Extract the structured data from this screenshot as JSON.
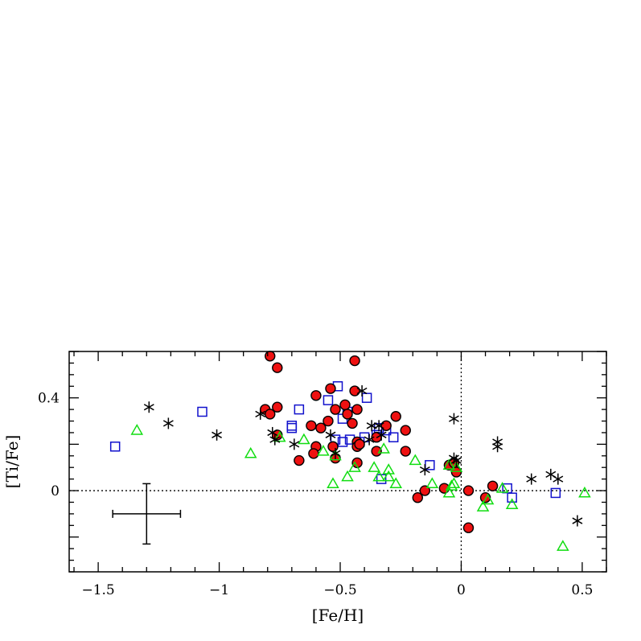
{
  "chart_data": {
    "type": "scatter",
    "title": "",
    "xlabel": "[Fe/H]",
    "ylabel": "[Ti/Fe]",
    "xlim": [
      -1.62,
      0.6
    ],
    "ylim": [
      -0.35,
      0.6
    ],
    "x_ticks": [
      {
        "value": -1.5,
        "label": "−1.5"
      },
      {
        "value": -1.0,
        "label": "−1"
      },
      {
        "value": -0.5,
        "label": "−0.5"
      },
      {
        "value": 0.0,
        "label": "0"
      },
      {
        "value": 0.5,
        "label": "0.5"
      }
    ],
    "y_ticks": [
      {
        "value": 0.0,
        "label": "0"
      },
      {
        "value": 0.4,
        "label": "0.4"
      }
    ],
    "reference_lines": {
      "x": 0.0,
      "y": 0.0,
      "style": "dotted"
    },
    "error_bar": {
      "x": -1.3,
      "y": -0.1,
      "xerr": 0.14,
      "yerr": 0.13
    },
    "colors": {
      "circle_fill": "#ee1111",
      "square": "#1111cc",
      "triangle": "#11dd11",
      "star": "#000000"
    },
    "series": [
      {
        "marker": "filled-circle",
        "points": [
          [
            -0.79,
            0.58
          ],
          [
            -0.76,
            0.53
          ],
          [
            -0.44,
            0.56
          ],
          [
            -0.81,
            0.35
          ],
          [
            -0.79,
            0.33
          ],
          [
            -0.76,
            0.36
          ],
          [
            -0.76,
            0.24
          ],
          [
            -0.67,
            0.13
          ],
          [
            -0.62,
            0.28
          ],
          [
            -0.6,
            0.41
          ],
          [
            -0.6,
            0.19
          ],
          [
            -0.61,
            0.16
          ],
          [
            -0.58,
            0.27
          ],
          [
            -0.55,
            0.3
          ],
          [
            -0.54,
            0.44
          ],
          [
            -0.53,
            0.19
          ],
          [
            -0.52,
            0.35
          ],
          [
            -0.52,
            0.14
          ],
          [
            -0.48,
            0.37
          ],
          [
            -0.47,
            0.33
          ],
          [
            -0.45,
            0.29
          ],
          [
            -0.44,
            0.43
          ],
          [
            -0.43,
            0.35
          ],
          [
            -0.43,
            0.21
          ],
          [
            -0.43,
            0.19
          ],
          [
            -0.43,
            0.12
          ],
          [
            -0.42,
            0.2
          ],
          [
            -0.35,
            0.23
          ],
          [
            -0.35,
            0.17
          ],
          [
            -0.31,
            0.28
          ],
          [
            -0.27,
            0.32
          ],
          [
            -0.23,
            0.26
          ],
          [
            -0.23,
            0.17
          ],
          [
            -0.18,
            -0.03
          ],
          [
            -0.15,
            0.0
          ],
          [
            -0.07,
            0.01
          ],
          [
            -0.05,
            0.11
          ],
          [
            -0.03,
            0.12
          ],
          [
            -0.02,
            0.08
          ],
          [
            0.03,
            0.0
          ],
          [
            0.03,
            -0.16
          ],
          [
            0.1,
            -0.03
          ],
          [
            0.13,
            0.02
          ]
        ]
      },
      {
        "marker": "open-square",
        "points": [
          [
            -1.43,
            0.19
          ],
          [
            -1.07,
            0.34
          ],
          [
            -0.7,
            0.28
          ],
          [
            -0.7,
            0.27
          ],
          [
            -0.67,
            0.35
          ],
          [
            -0.55,
            0.39
          ],
          [
            -0.52,
            0.22
          ],
          [
            -0.51,
            0.45
          ],
          [
            -0.49,
            0.21
          ],
          [
            -0.49,
            0.31
          ],
          [
            -0.47,
            0.34
          ],
          [
            -0.46,
            0.22
          ],
          [
            -0.42,
            0.21
          ],
          [
            -0.4,
            0.23
          ],
          [
            -0.39,
            0.4
          ],
          [
            -0.35,
            0.24
          ],
          [
            -0.34,
            0.27
          ],
          [
            -0.33,
            0.05
          ],
          [
            -0.31,
            0.26
          ],
          [
            -0.28,
            0.23
          ],
          [
            -0.13,
            0.11
          ],
          [
            0.19,
            0.01
          ],
          [
            0.21,
            -0.03
          ],
          [
            0.39,
            -0.01
          ]
        ]
      },
      {
        "marker": "open-triangle",
        "points": [
          [
            -1.34,
            0.26
          ],
          [
            -0.87,
            0.16
          ],
          [
            -0.75,
            0.23
          ],
          [
            -0.65,
            0.22
          ],
          [
            -0.57,
            0.17
          ],
          [
            -0.53,
            0.03
          ],
          [
            -0.52,
            0.15
          ],
          [
            -0.47,
            0.06
          ],
          [
            -0.44,
            0.1
          ],
          [
            -0.36,
            0.1
          ],
          [
            -0.34,
            0.06
          ],
          [
            -0.32,
            0.18
          ],
          [
            -0.3,
            0.09
          ],
          [
            -0.3,
            0.06
          ],
          [
            -0.27,
            0.03
          ],
          [
            -0.19,
            0.13
          ],
          [
            -0.12,
            0.03
          ],
          [
            -0.05,
            0.11
          ],
          [
            -0.05,
            -0.01
          ],
          [
            -0.04,
            0.02
          ],
          [
            -0.03,
            0.03
          ],
          [
            -0.02,
            0.1
          ],
          [
            0.09,
            -0.07
          ],
          [
            0.11,
            -0.04
          ],
          [
            0.17,
            0.01
          ],
          [
            0.21,
            -0.06
          ],
          [
            0.42,
            -0.24
          ],
          [
            0.51,
            -0.01
          ]
        ]
      },
      {
        "marker": "asterisk",
        "points": [
          [
            -1.29,
            0.36
          ],
          [
            -1.21,
            0.29
          ],
          [
            -1.01,
            0.24
          ],
          [
            -0.83,
            0.33
          ],
          [
            -0.78,
            0.25
          ],
          [
            -0.77,
            0.22
          ],
          [
            -0.69,
            0.2
          ],
          [
            -0.54,
            0.24
          ],
          [
            -0.52,
            0.16
          ],
          [
            -0.41,
            0.43
          ],
          [
            -0.38,
            0.22
          ],
          [
            -0.37,
            0.28
          ],
          [
            -0.34,
            0.28
          ],
          [
            -0.33,
            0.24
          ],
          [
            -0.15,
            0.09
          ],
          [
            -0.03,
            0.31
          ],
          [
            -0.03,
            0.14
          ],
          [
            -0.02,
            0.13
          ],
          [
            0.15,
            0.21
          ],
          [
            0.15,
            0.19
          ],
          [
            0.29,
            0.05
          ],
          [
            0.37,
            0.07
          ],
          [
            0.4,
            0.05
          ],
          [
            0.48,
            -0.13
          ]
        ]
      }
    ]
  }
}
